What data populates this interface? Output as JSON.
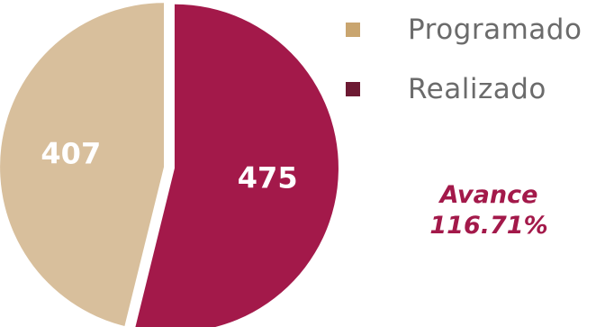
{
  "chart_data": {
    "type": "pie",
    "categories": [
      "Programado",
      "Realizado"
    ],
    "values": [
      407,
      475
    ],
    "colors": {
      "Programado": "#d8bf9c",
      "Realizado": "#a3194a"
    },
    "legend": {
      "placement": "top-right",
      "items": [
        {
          "label": "Programado",
          "color": "#c9a56f"
        },
        {
          "label": "Realizado",
          "color": "#6d1a33"
        }
      ]
    },
    "annotation": {
      "line1": "Avance",
      "line2": "116.71%",
      "color": "#a3194a"
    }
  }
}
